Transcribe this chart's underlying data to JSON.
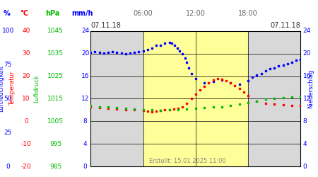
{
  "title_left": "07.11.18",
  "title_right": "07.11.18",
  "xlabel_times": [
    "06:00",
    "12:00",
    "18:00"
  ],
  "footer": "Erstellt: 15.01.2025 11:00",
  "y_left_label": "Luftfeuchtigkeit",
  "y_left2_label": "Temperatur",
  "y_left3_label": "Luftdruck",
  "y_right_label": "Niederschlag",
  "y_axis_ticks": [
    0,
    4,
    8,
    12,
    16,
    20,
    24
  ],
  "ylim": [
    0,
    24
  ],
  "xlim": [
    0,
    24
  ],
  "yellow_start": 6,
  "yellow_end": 18,
  "background_grey": "#d8d8d8",
  "background_yellow": "#ffff99",
  "grid_color": "#000000",
  "blue_color": "#0000ff",
  "red_color": "#ff0000",
  "green_color": "#00bb00",
  "fig_bg": "#ffffff",
  "blue_data_x": [
    0,
    0.5,
    1,
    1.5,
    2,
    2.5,
    3,
    3.5,
    4,
    4.5,
    5,
    5.5,
    6,
    6.5,
    7,
    7.5,
    8,
    8.5,
    9,
    9.3,
    9.6,
    9.9,
    10.2,
    10.5,
    10.8,
    11.0,
    11.2,
    11.5,
    12,
    13,
    14,
    15,
    16,
    17,
    18,
    18.5,
    19,
    19.5,
    20,
    20.5,
    21,
    21.5,
    22,
    22.5,
    23,
    23.5,
    24
  ],
  "blue_data_y": [
    20.2,
    20.3,
    20.2,
    20.1,
    20.2,
    20.3,
    20.2,
    20.1,
    20.0,
    20.1,
    20.2,
    20.3,
    20.5,
    20.7,
    21.0,
    21.4,
    21.5,
    21.8,
    22.0,
    21.8,
    21.5,
    21.0,
    20.5,
    20.0,
    19.2,
    18.5,
    17.5,
    16.5,
    15.5,
    14.8,
    15.0,
    15.3,
    14.8,
    14.5,
    15.2,
    15.8,
    16.2,
    16.5,
    17.0,
    17.3,
    17.5,
    17.8,
    18.0,
    18.2,
    18.5,
    18.8,
    19.0
  ],
  "red_data_x": [
    0,
    1,
    2,
    3,
    4,
    5,
    6,
    6.5,
    7,
    7.5,
    8,
    8.5,
    9,
    9.5,
    10,
    10.5,
    11,
    11.5,
    12,
    12.5,
    13,
    13.5,
    14,
    14.5,
    15,
    15.5,
    16,
    16.5,
    17,
    17.5,
    18,
    19,
    20,
    21,
    22,
    23,
    24
  ],
  "red_data_y": [
    10.5,
    10.4,
    10.3,
    10.2,
    10.1,
    10.0,
    9.9,
    9.8,
    9.7,
    9.8,
    9.9,
    10.0,
    10.1,
    10.2,
    10.3,
    10.5,
    11.2,
    12.0,
    12.8,
    13.5,
    14.2,
    14.8,
    15.3,
    15.5,
    15.4,
    15.2,
    14.8,
    14.3,
    13.8,
    13.2,
    12.5,
    11.5,
    11.2,
    11.0,
    10.9,
    10.8,
    10.8
  ],
  "green_data_x": [
    0,
    1,
    2,
    3,
    4,
    5,
    6,
    7,
    8,
    9,
    10,
    11,
    12,
    13,
    14,
    15,
    16,
    17,
    18,
    19,
    20,
    21,
    22,
    23,
    24
  ],
  "green_data_y": [
    10.8,
    10.6,
    10.5,
    10.4,
    10.3,
    10.2,
    10.1,
    10.0,
    9.9,
    10.0,
    10.1,
    10.2,
    10.3,
    10.4,
    10.5,
    10.6,
    10.8,
    11.0,
    11.3,
    11.6,
    11.9,
    12.1,
    12.2,
    12.3,
    12.4
  ],
  "left_labels_pct": [
    "0",
    "25",
    "50",
    "75",
    "100"
  ],
  "left_labels_pct_y": [
    0,
    6,
    12,
    18,
    24
  ],
  "left_labels_temp": [
    "-20",
    "-10",
    "0",
    "10",
    "20",
    "30",
    "40"
  ],
  "left_labels_temp_y": [
    0,
    4,
    8,
    12,
    16,
    20,
    24
  ],
  "left_labels_hpa": [
    "985",
    "995",
    "1005",
    "1015",
    "1025",
    "1035",
    "1045"
  ],
  "left_labels_hpa_y": [
    0,
    4,
    8,
    12,
    16,
    20,
    24
  ],
  "right_labels_mmh": [
    "0",
    "4",
    "8",
    "12",
    "16",
    "20",
    "24"
  ],
  "right_labels_mmh_y": [
    0,
    4,
    8,
    12,
    16,
    20,
    24
  ],
  "figsize": [
    4.5,
    2.5
  ],
  "dpi": 100
}
